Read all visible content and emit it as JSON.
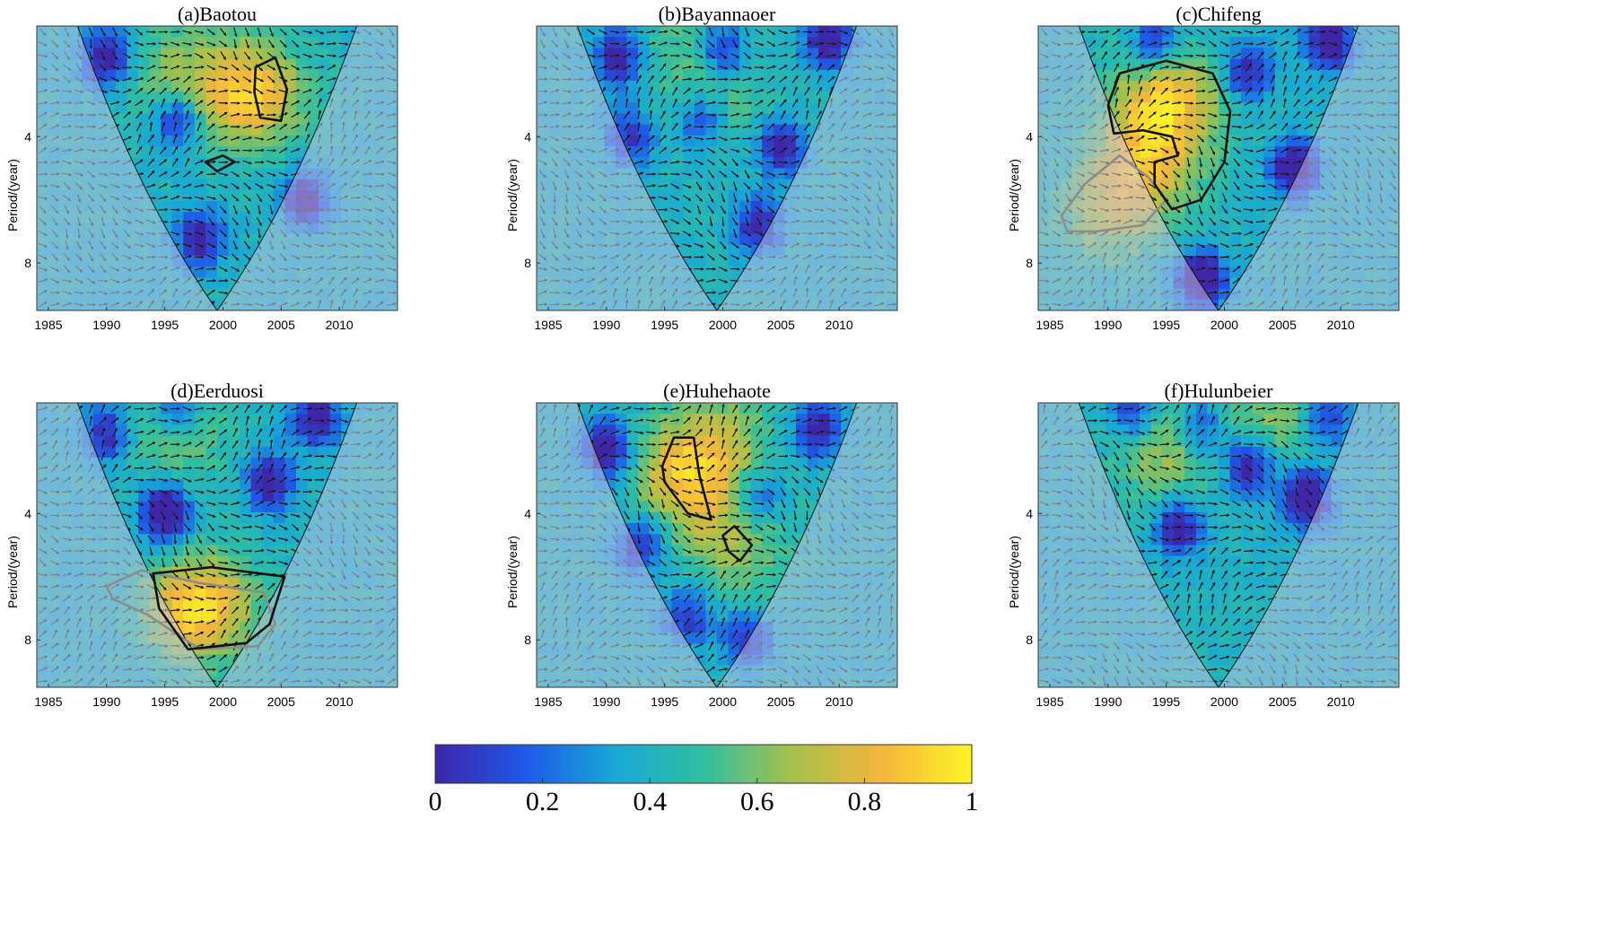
{
  "chart_data": {
    "type": "heatmap",
    "colorbar": {
      "range": [
        0,
        1
      ],
      "ticks": [
        "0",
        "0.2",
        "0.4",
        "0.6",
        "0.8",
        "1"
      ],
      "colors": [
        "#3e26a8",
        "#1f58e8",
        "#17a8d6",
        "#2fbfa0",
        "#a6c14a",
        "#f5b53c",
        "#fdf526"
      ]
    },
    "panels": [
      {
        "title": "(a)Baotou",
        "xlim": [
          1984,
          2015
        ],
        "ylim": [
          9.5,
          0.5
        ],
        "xticks": [
          "1985",
          "1990",
          "1995",
          "2000",
          "2005",
          "2010"
        ],
        "yticks": [
          "4",
          "8"
        ],
        "ylabel": "Period/(year)",
        "hotspots": [
          [
            2002,
            2.5,
            0.35
          ],
          [
            1996,
            2.0,
            0.2
          ],
          [
            2003,
            3.0,
            0.15
          ]
        ],
        "lowspots": [
          [
            1990,
            1.5,
            0.5
          ],
          [
            1998,
            7.2,
            0.45
          ],
          [
            2007,
            6.0,
            0.45
          ],
          [
            1996,
            3.5,
            0.4
          ]
        ],
        "black_contours": [
          [
            [
              2002.8,
              1.8
            ],
            [
              2004.5,
              1.5
            ],
            [
              2005.5,
              2.5
            ],
            [
              2005,
              3.5
            ],
            [
              2003.2,
              3.4
            ],
            [
              2002.7,
              2.6
            ]
          ],
          [
            [
              1998.5,
              4.8
            ],
            [
              2000,
              4.6
            ],
            [
              2001,
              4.8
            ],
            [
              1999.5,
              5.1
            ]
          ]
        ],
        "grey_contours": []
      },
      {
        "title": "(b)Bayannaoer",
        "xlim": [
          1984,
          2015
        ],
        "ylim": [
          9.5,
          0.5
        ],
        "xticks": [
          "1985",
          "1990",
          "1995",
          "2000",
          "2005",
          "2010"
        ],
        "yticks": [
          "4",
          "8"
        ],
        "ylabel": "Period/(year)",
        "hotspots": [
          [
            1997,
            1.5,
            0.15
          ],
          [
            2001,
            3.0,
            0.1
          ]
        ],
        "lowspots": [
          [
            2009,
            0.9,
            0.5
          ],
          [
            2000,
            1.3,
            0.4
          ],
          [
            1991,
            1.5,
            0.45
          ],
          [
            2005,
            4.3,
            0.45
          ],
          [
            2003,
            6.8,
            0.4
          ],
          [
            1992,
            4.0,
            0.35
          ],
          [
            1998,
            3.5,
            0.3
          ]
        ],
        "black_contours": [],
        "grey_contours": []
      },
      {
        "title": "(c)Chifeng",
        "xlim": [
          1984,
          2015
        ],
        "ylim": [
          9.5,
          0.5
        ],
        "xticks": [
          "1985",
          "1990",
          "1995",
          "2000",
          "2005",
          "2010"
        ],
        "yticks": [
          "4",
          "8"
        ],
        "ylabel": "Period/(year)",
        "hotspots": [
          [
            1995,
            3.0,
            0.5
          ],
          [
            1993,
            5.0,
            0.35
          ],
          [
            1990,
            6.5,
            0.25
          ]
        ],
        "lowspots": [
          [
            2009,
            1.0,
            0.55
          ],
          [
            1998,
            8.5,
            0.6
          ],
          [
            2006,
            5.0,
            0.55
          ],
          [
            1994,
            1.0,
            0.35
          ],
          [
            2002,
            2.0,
            0.4
          ]
        ],
        "black_contours": [
          [
            [
              1990,
              3.0
            ],
            [
              1991,
              2.0
            ],
            [
              1995,
              1.6
            ],
            [
              1999,
              2.0
            ],
            [
              2000.5,
              3.2
            ],
            [
              2000,
              4.8
            ],
            [
              1998,
              6.0
            ],
            [
              1995.5,
              6.3
            ],
            [
              1994,
              5.5
            ],
            [
              1994,
              4.8
            ],
            [
              1996,
              4.6
            ],
            [
              1995.5,
              4.0
            ],
            [
              1993,
              3.8
            ],
            [
              1990.5,
              3.9
            ]
          ]
        ],
        "grey_contours": [
          [
            [
              1986,
              6.5
            ],
            [
              1988,
              5.5
            ],
            [
              1991,
              4.6
            ],
            [
              1993.5,
              5.3
            ],
            [
              1995,
              6.0
            ],
            [
              1993,
              6.8
            ],
            [
              1989,
              7.0
            ],
            [
              1986.5,
              7.0
            ]
          ]
        ]
      },
      {
        "title": "(d)Eerduosi",
        "xlim": [
          1984,
          2015
        ],
        "ylim": [
          9.5,
          0.5
        ],
        "xticks": [
          "1985",
          "1990",
          "1995",
          "2000",
          "2005",
          "2010"
        ],
        "yticks": [
          "4",
          "8"
        ],
        "ylabel": "Period/(year)",
        "hotspots": [
          [
            1998,
            7.0,
            0.55
          ],
          [
            1996,
            1.5,
            0.2
          ]
        ],
        "lowspots": [
          [
            1995,
            4.0,
            0.6
          ],
          [
            2004,
            3.0,
            0.45
          ],
          [
            1990,
            1.5,
            0.4
          ],
          [
            2008,
            1.0,
            0.45
          ],
          [
            1996,
            0.8,
            0.3
          ]
        ],
        "black_contours": [
          [
            [
              1994,
              5.9
            ],
            [
              1999,
              5.7
            ],
            [
              2005.3,
              6.0
            ],
            [
              2004,
              7.5
            ],
            [
              2002,
              8.1
            ],
            [
              1997,
              8.3
            ],
            [
              1994.5,
              7.0
            ]
          ]
        ],
        "grey_contours": [
          [
            [
              1990,
              6.3
            ],
            [
              1993,
              5.8
            ],
            [
              1998,
              6.2
            ],
            [
              2003.5,
              6.5
            ],
            [
              2004.5,
              7.5
            ],
            [
              2003,
              8.2
            ],
            [
              1998,
              8.3
            ],
            [
              1993.5,
              7.2
            ],
            [
              1990.5,
              6.7
            ]
          ]
        ]
      },
      {
        "title": "(e)Huhehaote",
        "xlim": [
          1984,
          2015
        ],
        "ylim": [
          9.5,
          0.5
        ],
        "xticks": [
          "1985",
          "1990",
          "1995",
          "2000",
          "2005",
          "2010"
        ],
        "yticks": [
          "4",
          "8"
        ],
        "ylabel": "Period/(year)",
        "hotspots": [
          [
            1997,
            2.8,
            0.45
          ],
          [
            2001,
            5.0,
            0.25
          ],
          [
            2000,
            1.5,
            0.2
          ]
        ],
        "lowspots": [
          [
            1990,
            2.0,
            0.55
          ],
          [
            2008,
            1.3,
            0.45
          ],
          [
            1993,
            5.0,
            0.4
          ],
          [
            1997,
            7.3,
            0.35
          ],
          [
            2003,
            3.5,
            0.3
          ],
          [
            2002,
            8.0,
            0.35
          ]
        ],
        "black_contours": [
          [
            [
              1994.8,
              2.5
            ],
            [
              1995.8,
              1.6
            ],
            [
              1997.5,
              1.6
            ],
            [
              1998,
              2.8
            ],
            [
              1999,
              4.2
            ],
            [
              1997,
              4.0
            ],
            [
              1995,
              3.0
            ]
          ],
          [
            [
              2000,
              4.7
            ],
            [
              2001,
              4.4
            ],
            [
              2002.5,
              5.0
            ],
            [
              2001.5,
              5.5
            ],
            [
              2000.5,
              5.2
            ]
          ]
        ],
        "grey_contours": []
      },
      {
        "title": "(f)Hulunbeier",
        "xlim": [
          1984,
          2015
        ],
        "ylim": [
          9.5,
          0.5
        ],
        "xticks": [
          "1985",
          "1990",
          "1995",
          "2000",
          "2005",
          "2010"
        ],
        "yticks": [
          "4",
          "8"
        ],
        "ylabel": "Period/(year)",
        "hotspots": [
          [
            1995,
            2.0,
            0.25
          ],
          [
            2004,
            1.0,
            0.2
          ]
        ],
        "lowspots": [
          [
            2002,
            2.5,
            0.5
          ],
          [
            2007,
            3.5,
            0.6
          ],
          [
            1996,
            4.5,
            0.45
          ],
          [
            1992,
            0.8,
            0.35
          ],
          [
            1998,
            1.3,
            0.35
          ],
          [
            2009,
            1.0,
            0.35
          ]
        ],
        "black_contours": [],
        "grey_contours": []
      }
    ]
  }
}
